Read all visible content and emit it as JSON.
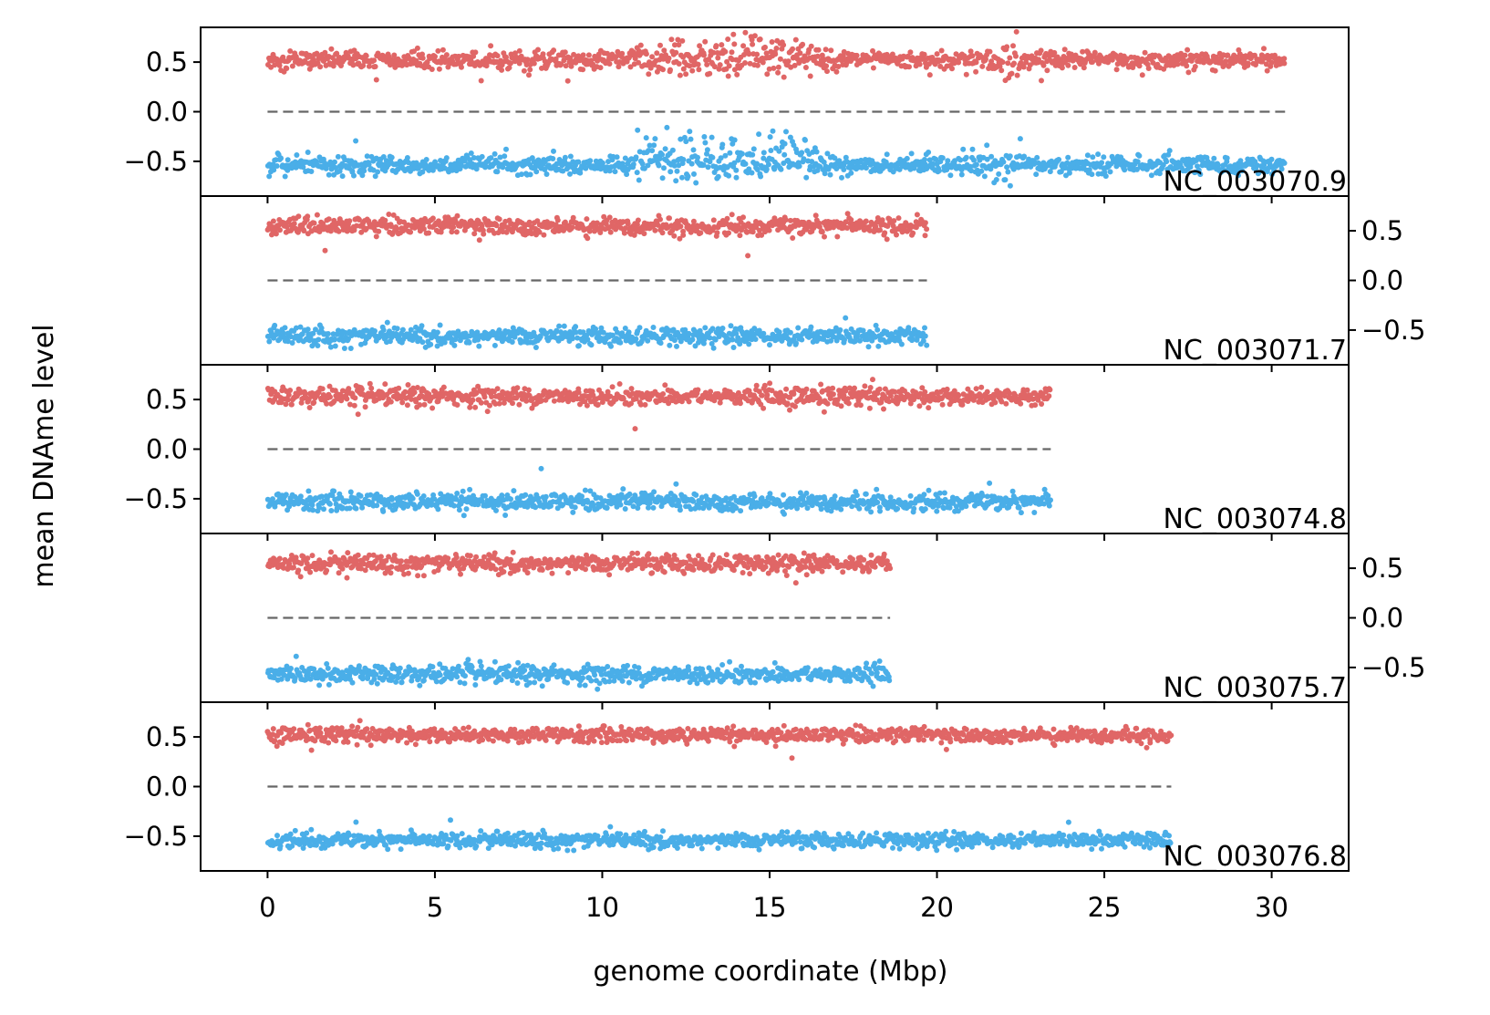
{
  "chart_data": {
    "type": "scatter",
    "xlabel": "genome coordinate (Mbp)",
    "ylabel": "mean DNAme level",
    "xlim": [
      -2,
      32.3
    ],
    "xticks": [
      0,
      5,
      10,
      15,
      20,
      25,
      30
    ],
    "ylim": [
      -0.85,
      0.85
    ],
    "yticks": [
      0.5,
      0.0,
      -0.5
    ],
    "ytick_labels": [
      "0.5",
      "0.0",
      "−0.5"
    ],
    "colors": {
      "positive": "#e06666",
      "negative": "#4aaee8",
      "baseline": "#666666"
    },
    "panels": [
      {
        "label": "NC_003070.9",
        "length": 30.4,
        "ytick_side": "left",
        "positive": {
          "mean": 0.52,
          "spread": 0.06
        },
        "negative": {
          "mean": -0.54,
          "spread": 0.06
        },
        "features": [
          {
            "x_range": [
              11.0,
              16.5
            ],
            "positive_shift": 0.18,
            "negative_shift": 0.3
          },
          {
            "x_range": [
              21.0,
              22.5
            ],
            "positive_shift": -0.05,
            "negative_shift": 0.0
          }
        ]
      },
      {
        "label": "NC_003071.7",
        "length": 19.7,
        "ytick_side": "right",
        "positive": {
          "mean": 0.55,
          "spread": 0.06
        },
        "negative": {
          "mean": -0.56,
          "spread": 0.06
        },
        "features": []
      },
      {
        "label": "NC_003074.8",
        "length": 23.4,
        "ytick_side": "left",
        "positive": {
          "mean": 0.53,
          "spread": 0.06
        },
        "negative": {
          "mean": -0.53,
          "spread": 0.06
        },
        "features": []
      },
      {
        "label": "NC_003075.7",
        "length": 18.6,
        "ytick_side": "right",
        "positive": {
          "mean": 0.55,
          "spread": 0.06
        },
        "negative": {
          "mean": -0.57,
          "spread": 0.06
        },
        "features": []
      },
      {
        "label": "NC_003076.8",
        "length": 27.0,
        "ytick_side": "left",
        "positive": {
          "mean": 0.52,
          "spread": 0.05
        },
        "negative": {
          "mean": -0.54,
          "spread": 0.05
        },
        "features": []
      }
    ]
  }
}
